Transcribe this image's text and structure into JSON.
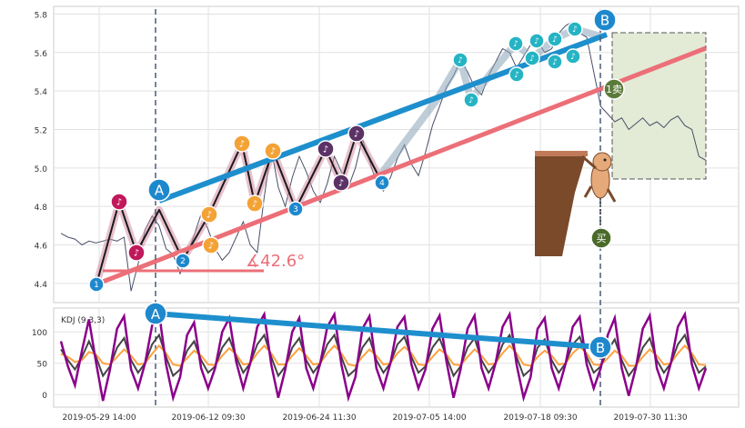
{
  "chart_data": [
    {
      "panel": "price",
      "type": "line",
      "title": "",
      "xlabel": "",
      "ylabel": "",
      "ylim": [
        4.3,
        5.84
      ],
      "yticks": [
        4.4,
        4.6,
        4.8,
        5.0,
        5.2,
        5.4,
        5.6,
        5.8
      ],
      "grid": true,
      "colors": {
        "price": "#4a5068",
        "trendline": "#1e8fcd",
        "support": "#ec6f78",
        "markers": [
          "#1e88cd",
          "#c2185b",
          "#f4a236",
          "#5c3266",
          "#25b4c4"
        ]
      },
      "series": [
        {
          "values": [
            4.66,
            4.64,
            4.63,
            4.6,
            4.62,
            4.61,
            4.62,
            4.63,
            4.62,
            4.64,
            4.36,
            4.5,
            4.68,
            4.75,
            4.7,
            4.58,
            4.55,
            4.45,
            4.55,
            4.65,
            4.76,
            4.68,
            4.58,
            4.52,
            4.56,
            4.64,
            4.72,
            4.6,
            4.56,
            4.85,
            5.1,
            4.9,
            4.8,
            4.95,
            5.06,
            4.98,
            4.88,
            4.82,
            4.92,
            5.06,
            4.98,
            4.9,
            5.0,
            5.15,
            5.04,
            4.92,
            4.88,
            4.95,
            5.05,
            5.12,
            5.02,
            4.96,
            5.08,
            5.22,
            5.32,
            5.42,
            5.48,
            5.56,
            5.5,
            5.42,
            5.38,
            5.48,
            5.55,
            5.62,
            5.6,
            5.52,
            5.58,
            5.64,
            5.66,
            5.6,
            5.62,
            5.7,
            5.74,
            5.76,
            5.7,
            5.68,
            5.5,
            5.32,
            5.28,
            5.24,
            5.26,
            5.2,
            5.23,
            5.26,
            5.22,
            5.24,
            5.21,
            5.25,
            5.27,
            5.22,
            5.2,
            5.06,
            5.04
          ]
        }
      ],
      "x_tick_labels": [
        "2019-05-29 14:00",
        "2019-06-12 09:30",
        "2019-06-24 11:30",
        "2019-07-05 14:00",
        "2019-07-18 09:30",
        "2019-07-30 11:30"
      ],
      "annotations": {
        "angle_label": "∡42.6°",
        "point_a": "A",
        "point_b": "B",
        "wave_labels": [
          "1",
          "2",
          "3",
          "4"
        ],
        "buy_badge": "买",
        "sell_badge": "卖",
        "buy_sell_text": "1卖"
      }
    },
    {
      "panel": "kdj",
      "type": "line",
      "legend": "KDJ (9,3,3)",
      "ylim": [
        -20,
        138
      ],
      "yticks": [
        0,
        50,
        100
      ],
      "series": [
        {
          "name": "K",
          "values": [
            72,
            55,
            40,
            60,
            85,
            60,
            30,
            45,
            75,
            90,
            55,
            35,
            50,
            80,
            95,
            60,
            30,
            40,
            70,
            85,
            55,
            35,
            45,
            75,
            90,
            60,
            35,
            50,
            80,
            95,
            60,
            30,
            45,
            75,
            90,
            55,
            35,
            50,
            80,
            95,
            60,
            30,
            40,
            75,
            90,
            55,
            35,
            50,
            80,
            92,
            60,
            35,
            45,
            75,
            90,
            60,
            30,
            45,
            75,
            90,
            55,
            35,
            50,
            80,
            95,
            60,
            30,
            40,
            75,
            88,
            55,
            35,
            50,
            80,
            92,
            60,
            35,
            45,
            70,
            88,
            55,
            30,
            45,
            75,
            90,
            55,
            35,
            50,
            80,
            95,
            60,
            35,
            45
          ]
        },
        {
          "name": "D",
          "values": [
            65,
            60,
            52,
            55,
            68,
            64,
            50,
            48,
            60,
            72,
            62,
            48,
            50,
            65,
            78,
            66,
            48,
            46,
            58,
            70,
            62,
            48,
            47,
            62,
            74,
            64,
            48,
            50,
            66,
            78,
            66,
            48,
            48,
            62,
            74,
            62,
            48,
            50,
            66,
            78,
            66,
            48,
            46,
            60,
            72,
            62,
            48,
            50,
            66,
            76,
            66,
            48,
            47,
            60,
            72,
            64,
            48,
            47,
            60,
            72,
            62,
            48,
            50,
            66,
            78,
            66,
            48,
            46,
            60,
            70,
            62,
            48,
            50,
            66,
            76,
            66,
            48,
            47,
            58,
            70,
            62,
            46,
            46,
            60,
            72,
            62,
            48,
            50,
            66,
            78,
            66,
            48,
            47
          ]
        },
        {
          "name": "J",
          "values": [
            85,
            45,
            15,
            70,
            120,
            52,
            -10,
            40,
            105,
            125,
            40,
            10,
            50,
            110,
            130,
            48,
            -5,
            28,
            95,
            115,
            42,
            10,
            42,
            100,
            122,
            52,
            10,
            50,
            108,
            128,
            48,
            -5,
            40,
            100,
            122,
            42,
            10,
            50,
            108,
            128,
            48,
            -5,
            28,
            105,
            125,
            42,
            10,
            50,
            108,
            124,
            48,
            10,
            40,
            105,
            126,
            52,
            -5,
            40,
            105,
            126,
            42,
            10,
            50,
            108,
            128,
            48,
            -5,
            28,
            105,
            122,
            42,
            10,
            50,
            108,
            124,
            48,
            10,
            42,
            95,
            122,
            42,
            -2,
            42,
            105,
            126,
            42,
            10,
            50,
            108,
            128,
            48,
            10,
            42
          ]
        }
      ],
      "annotations": {
        "point_a": "A",
        "point_b": "B"
      }
    }
  ]
}
